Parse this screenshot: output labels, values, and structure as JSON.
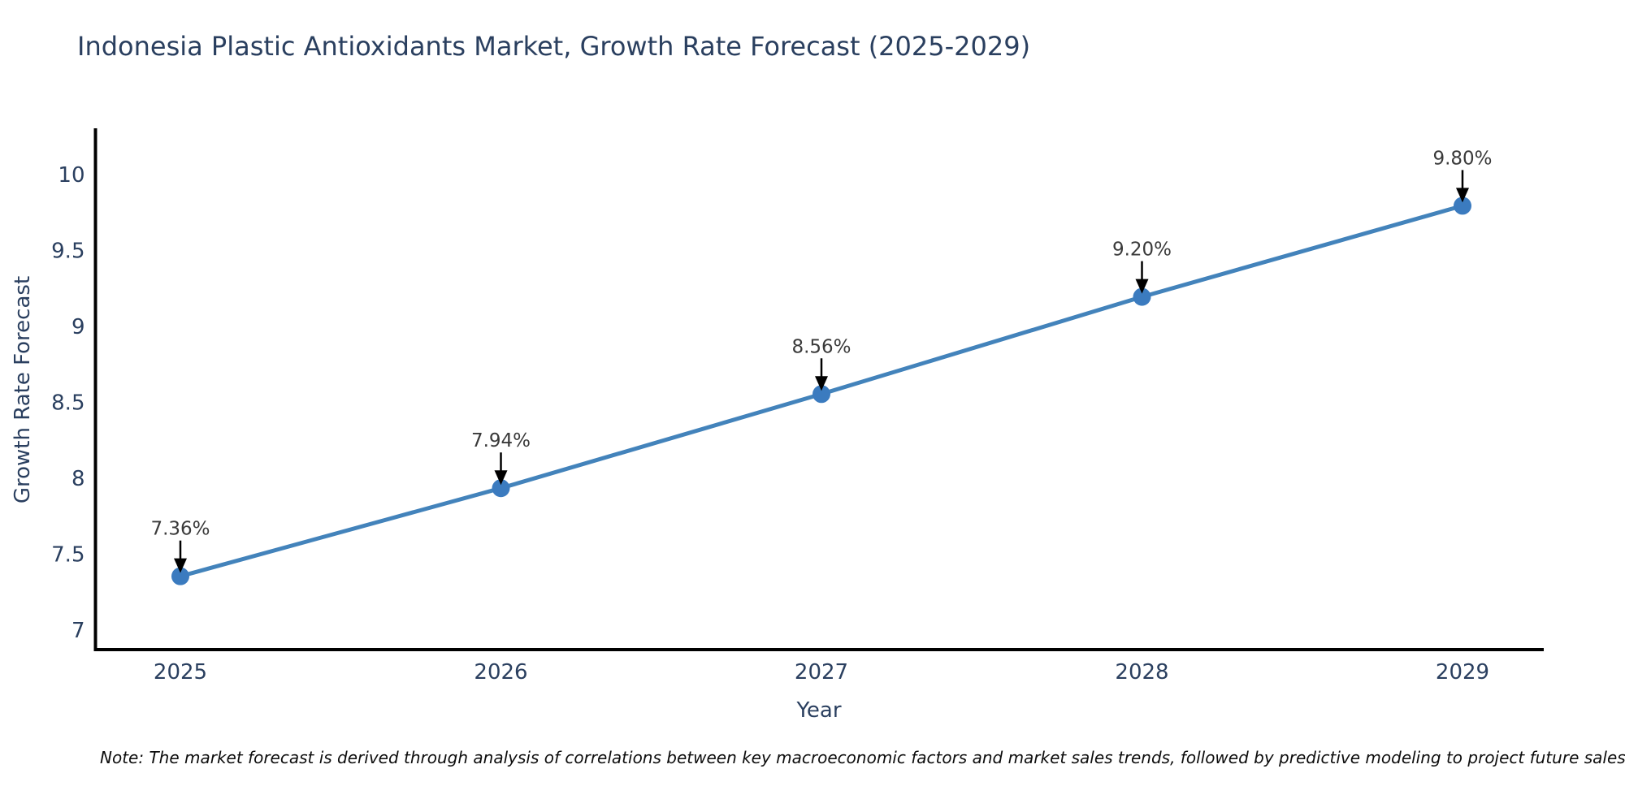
{
  "chart_data": {
    "type": "line",
    "title": "Indonesia Plastic Antioxidants Market, Growth Rate Forecast (2025-2029)",
    "xlabel": "Year",
    "ylabel": "Growth Rate Forecast",
    "categories": [
      2025,
      2026,
      2027,
      2028,
      2029
    ],
    "series": [
      {
        "name": "Growth Rate Forecast",
        "values": [
          7.36,
          7.94,
          8.56,
          9.2,
          9.8
        ],
        "point_labels": [
          "7.36%",
          "7.94%",
          "8.56%",
          "9.20%",
          "9.80%"
        ]
      }
    ],
    "y_ticks": [
      7,
      7.5,
      8,
      8.5,
      9,
      9.5,
      10
    ],
    "ylim": [
      6.88,
      10.32
    ],
    "grid": false,
    "legend_position": "none",
    "annotations_style": "black down-arrows from labels to points",
    "note": "Note: The market forecast is derived through analysis of correlations between key macroeconomic factors and market sales trends, followed by predictive modeling to project future sales",
    "colors": {
      "line": "#4383bb",
      "marker": "#3b7bbf",
      "arrow": "#000000",
      "axis": "#000000",
      "title_text": "#2a3f5f",
      "tick_text": "#2a3f5f",
      "point_label_text": "#3a3a3a"
    }
  }
}
